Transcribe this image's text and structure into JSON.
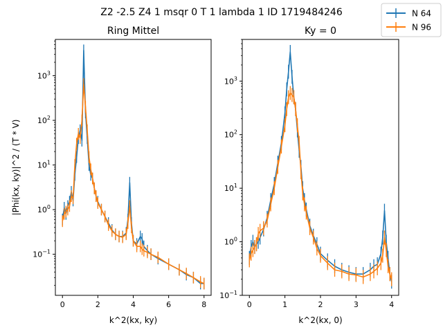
{
  "figure": {
    "suptitle": "Z2 -2.5 Z4 1 msqr 0 T 1 lambda 1 ID 1719484246"
  },
  "legend": {
    "placement": "top-right",
    "entries": [
      {
        "label": "N 64",
        "color": "#1f77b4"
      },
      {
        "label": "N 96",
        "color": "#ff7f0e"
      }
    ]
  },
  "chart_data": [
    {
      "type": "line",
      "title": "Ring Mittel",
      "xlabel": "k^2(kx, ky)",
      "ylabel": "|Phi(kx, ky)|^2 / (T * V)",
      "xlim": [
        -0.4,
        8.4
      ],
      "xticks": [
        0,
        2,
        4,
        6,
        8
      ],
      "ylog": true,
      "ylim": [
        0.012,
        6500
      ],
      "ytick_labels": [
        "10^-1",
        "10^0",
        "10^1",
        "10^2",
        "10^3"
      ],
      "grid": false,
      "error_bars": true,
      "series": [
        {
          "name": "N 64",
          "color": "#1f77b4",
          "x": [
            0.0,
            0.1,
            0.2,
            0.3,
            0.4,
            0.5,
            0.6,
            0.7,
            0.8,
            0.9,
            1.0,
            1.1,
            1.2,
            1.3,
            1.4,
            1.5,
            1.6,
            1.7,
            1.8,
            1.9,
            2.0,
            2.2,
            2.4,
            2.6,
            2.8,
            3.0,
            3.2,
            3.4,
            3.6,
            3.7,
            3.8,
            3.9,
            4.0,
            4.2,
            4.4,
            4.5,
            4.6,
            4.8,
            5.0,
            5.4,
            6.0,
            6.6,
            7.0,
            7.4,
            7.8,
            8.0
          ],
          "y": [
            0.6,
            1.1,
            0.8,
            1.2,
            1.5,
            2.5,
            1.6,
            6.0,
            15,
            40,
            60,
            35,
            3700,
            150,
            40,
            10,
            6.0,
            5.0,
            3.0,
            2.0,
            1.5,
            1.0,
            0.7,
            0.5,
            0.35,
            0.28,
            0.25,
            0.25,
            0.3,
            0.6,
            4.0,
            0.5,
            0.2,
            0.17,
            0.25,
            0.22,
            0.15,
            0.12,
            0.1,
            0.08,
            0.06,
            0.045,
            0.035,
            0.03,
            0.022,
            0.022
          ]
        },
        {
          "name": "N 96",
          "color": "#ff7f0e",
          "x": [
            0.0,
            0.1,
            0.2,
            0.3,
            0.4,
            0.5,
            0.6,
            0.7,
            0.8,
            0.9,
            1.0,
            1.1,
            1.2,
            1.3,
            1.4,
            1.5,
            1.6,
            1.7,
            1.8,
            1.9,
            2.0,
            2.2,
            2.4,
            2.6,
            2.8,
            3.0,
            3.2,
            3.4,
            3.6,
            3.7,
            3.8,
            3.9,
            4.0,
            4.2,
            4.4,
            4.5,
            4.6,
            4.8,
            5.0,
            5.4,
            6.0,
            6.6,
            7.0,
            7.4,
            7.8,
            8.0
          ],
          "y": [
            0.55,
            0.8,
            0.9,
            1.0,
            1.2,
            2.0,
            1.8,
            10,
            30,
            50,
            40,
            100,
            650,
            200,
            60,
            15,
            8.0,
            5.0,
            3.0,
            2.0,
            1.4,
            1.0,
            0.7,
            0.45,
            0.33,
            0.28,
            0.25,
            0.24,
            0.28,
            0.5,
            1.2,
            0.4,
            0.2,
            0.15,
            0.15,
            0.13,
            0.12,
            0.11,
            0.1,
            0.085,
            0.06,
            0.045,
            0.037,
            0.03,
            0.024,
            0.022
          ]
        }
      ]
    },
    {
      "type": "line",
      "title": "Ky = 0",
      "xlabel": "k^2(kx, 0)",
      "ylabel": "",
      "xlim": [
        -0.2,
        4.2
      ],
      "xticks": [
        0,
        1,
        2,
        3,
        4
      ],
      "ylog": true,
      "ylim": [
        0.1,
        6000
      ],
      "ytick_labels": [
        "10^-1",
        "10^0",
        "10^1",
        "10^2",
        "10^3"
      ],
      "grid": false,
      "error_bars": true,
      "series": [
        {
          "name": "N 64",
          "color": "#1f77b4",
          "x": [
            0.0,
            0.05,
            0.1,
            0.15,
            0.2,
            0.25,
            0.3,
            0.4,
            0.5,
            0.6,
            0.7,
            0.8,
            0.9,
            1.0,
            1.05,
            1.1,
            1.15,
            1.2,
            1.25,
            1.3,
            1.35,
            1.4,
            1.45,
            1.5,
            1.55,
            1.6,
            1.7,
            1.8,
            1.9,
            2.0,
            2.2,
            2.4,
            2.6,
            2.8,
            3.0,
            3.2,
            3.4,
            3.5,
            3.6,
            3.7,
            3.75,
            3.8,
            3.85,
            3.9,
            3.95,
            4.0
          ],
          "y": [
            0.5,
            0.8,
            1.0,
            0.8,
            0.9,
            1.0,
            1.2,
            1.7,
            2.8,
            6.0,
            12,
            30,
            70,
            250,
            700,
            1500,
            3500,
            1200,
            500,
            300,
            120,
            50,
            25,
            10,
            6.0,
            4.0,
            2.0,
            1.3,
            0.9,
            0.6,
            0.45,
            0.35,
            0.3,
            0.27,
            0.25,
            0.25,
            0.3,
            0.35,
            0.38,
            0.6,
            1.2,
            3.8,
            1.0,
            0.5,
            0.25,
            0.18
          ]
        },
        {
          "name": "N 96",
          "color": "#ff7f0e",
          "x": [
            0.0,
            0.05,
            0.1,
            0.15,
            0.2,
            0.25,
            0.3,
            0.4,
            0.5,
            0.6,
            0.7,
            0.8,
            0.9,
            1.0,
            1.05,
            1.1,
            1.15,
            1.2,
            1.25,
            1.3,
            1.35,
            1.4,
            1.45,
            1.5,
            1.55,
            1.6,
            1.7,
            1.8,
            1.9,
            2.0,
            2.2,
            2.4,
            2.6,
            2.8,
            3.0,
            3.2,
            3.4,
            3.5,
            3.6,
            3.7,
            3.75,
            3.8,
            3.85,
            3.9,
            3.95,
            4.0
          ],
          "y": [
            0.45,
            0.6,
            0.7,
            0.8,
            0.9,
            1.4,
            1.6,
            1.8,
            2.5,
            5.0,
            10,
            25,
            60,
            150,
            300,
            500,
            600,
            550,
            500,
            300,
            150,
            70,
            20,
            8.0,
            5.0,
            3.5,
            1.8,
            1.2,
            0.75,
            0.55,
            0.4,
            0.3,
            0.28,
            0.25,
            0.24,
            0.22,
            0.25,
            0.28,
            0.32,
            0.4,
            0.55,
            1.2,
            0.7,
            0.35,
            0.25,
            0.2
          ]
        }
      ]
    }
  ]
}
